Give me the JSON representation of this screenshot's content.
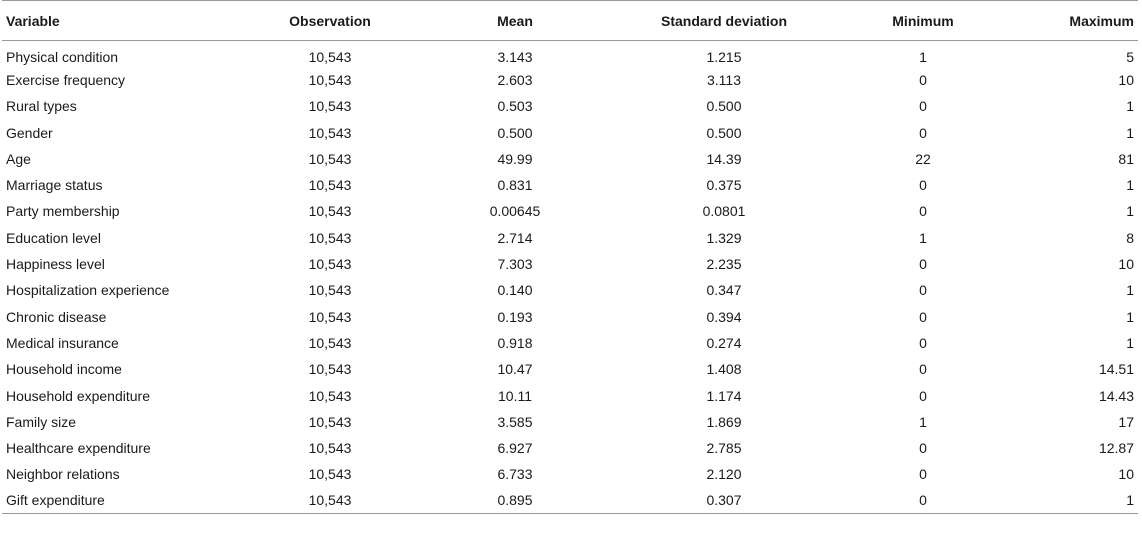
{
  "table": {
    "headers": [
      "Variable",
      "Observation",
      "Mean",
      "Standard deviation",
      "Minimum",
      "Maximum"
    ],
    "rows": [
      [
        "Physical condition",
        "10,543",
        "3.143",
        "1.215",
        "1",
        "5"
      ],
      [
        "Exercise frequency",
        "10,543",
        "2.603",
        "3.113",
        "0",
        "10"
      ],
      [
        "Rural types",
        "10,543",
        "0.503",
        "0.500",
        "0",
        "1"
      ],
      [
        "Gender",
        "10,543",
        "0.500",
        "0.500",
        "0",
        "1"
      ],
      [
        "Age",
        "10,543",
        "49.99",
        "14.39",
        "22",
        "81"
      ],
      [
        "Marriage status",
        "10,543",
        "0.831",
        "0.375",
        "0",
        "1"
      ],
      [
        "Party membership",
        "10,543",
        "0.00645",
        "0.0801",
        "0",
        "1"
      ],
      [
        "Education level",
        "10,543",
        "2.714",
        "1.329",
        "1",
        "8"
      ],
      [
        "Happiness level",
        "10,543",
        "7.303",
        "2.235",
        "0",
        "10"
      ],
      [
        "Hospitalization experience",
        "10,543",
        "0.140",
        "0.347",
        "0",
        "1"
      ],
      [
        "Chronic disease",
        "10,543",
        "0.193",
        "0.394",
        "0",
        "1"
      ],
      [
        "Medical insurance",
        "10,543",
        "0.918",
        "0.274",
        "0",
        "1"
      ],
      [
        "Household income",
        "10,543",
        "10.47",
        "1.408",
        "0",
        "14.51"
      ],
      [
        "Household expenditure",
        "10,543",
        "10.11",
        "1.174",
        "0",
        "14.43"
      ],
      [
        "Family size",
        "10,543",
        "3.585",
        "1.869",
        "1",
        "17"
      ],
      [
        "Healthcare expenditure",
        "10,543",
        "6.927",
        "2.785",
        "0",
        "12.87"
      ],
      [
        "Neighbor relations",
        "10,543",
        "6.733",
        "2.120",
        "0",
        "10"
      ],
      [
        "Gift expenditure",
        "10,543",
        "0.895",
        "0.307",
        "0",
        "1"
      ]
    ]
  }
}
